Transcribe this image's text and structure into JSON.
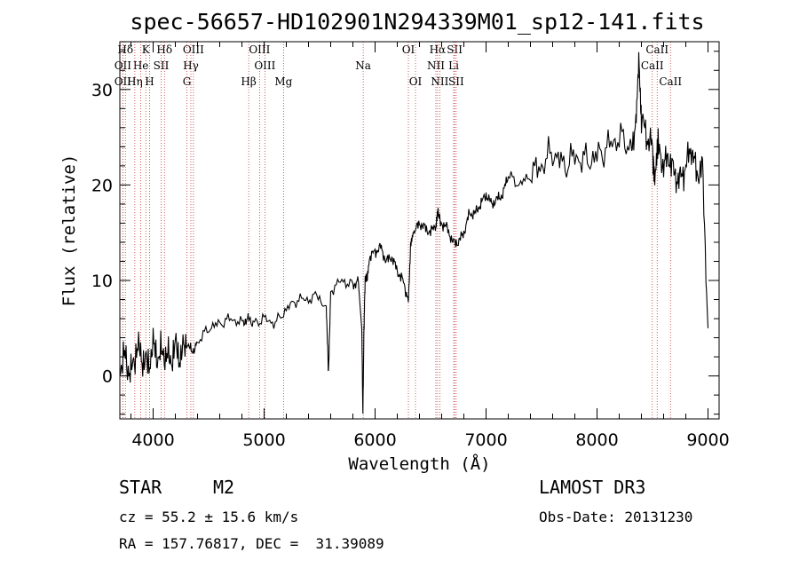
{
  "chart_data": {
    "type": "line",
    "title": "spec-56657-HD102901N294339M01_sp12-141.fits",
    "xlabel": "Wavelength (Å)",
    "ylabel": "Flux (relative)",
    "xlim": [
      3700,
      9100
    ],
    "ylim": [
      -4.5,
      35
    ],
    "xticks": [
      4000,
      5000,
      6000,
      7000,
      8000,
      9000
    ],
    "yticks": [
      0,
      10,
      20,
      30
    ],
    "series": [
      {
        "name": "spectrum",
        "x": [
          3700,
          3750,
          3800,
          3850,
          3900,
          3950,
          4000,
          4050,
          4100,
          4150,
          4200,
          4250,
          4300,
          4350,
          4400,
          4500,
          4600,
          4700,
          4800,
          4850,
          4900,
          5000,
          5100,
          5200,
          5300,
          5400,
          5500,
          5560,
          5580,
          5600,
          5700,
          5800,
          5850,
          5880,
          5890,
          5900,
          5910,
          5930,
          5950,
          6000,
          6050,
          6100,
          6150,
          6200,
          6250,
          6300,
          6320,
          6350,
          6400,
          6450,
          6500,
          6550,
          6563,
          6600,
          6650,
          6700,
          6750,
          6800,
          6850,
          6900,
          6950,
          7000,
          7050,
          7100,
          7150,
          7200,
          7300,
          7400,
          7500,
          7600,
          7700,
          7800,
          7900,
          8000,
          8100,
          8200,
          8300,
          8350,
          8380,
          8400,
          8450,
          8500,
          8520,
          8550,
          8600,
          8650,
          8700,
          8750,
          8800,
          8850,
          8900,
          8950,
          9000
        ],
        "values": [
          1,
          2,
          0,
          3,
          2,
          1,
          3,
          2,
          2.5,
          1.5,
          3,
          2,
          3.5,
          2.5,
          3.5,
          5,
          5.5,
          6,
          5.5,
          6,
          5.5,
          6,
          5.5,
          7,
          8,
          8,
          8.5,
          7,
          0,
          9,
          10,
          9.5,
          10,
          5,
          -4,
          5,
          10,
          10.5,
          12.5,
          13,
          13.5,
          12,
          12.5,
          11,
          10,
          8,
          13.5,
          15,
          16,
          15.5,
          15,
          16,
          17,
          16,
          15.5,
          14,
          14,
          15,
          17,
          17,
          18,
          19,
          18,
          18.5,
          19,
          21,
          20,
          21,
          22,
          23.5,
          22,
          23,
          22.5,
          23,
          24,
          25,
          24,
          26,
          33,
          27,
          25,
          24,
          21,
          24,
          22,
          23,
          21,
          20.5,
          22,
          24,
          21,
          22,
          5
        ]
      }
    ],
    "spectral_lines": [
      {
        "label": "Hδ",
        "wavelength": 3750,
        "row": 0
      },
      {
        "label": "K",
        "wavelength": 3934,
        "row": 0
      },
      {
        "label": "Hδ",
        "wavelength": 4102,
        "row": 0
      },
      {
        "label": "OIII",
        "wavelength": 4363,
        "row": 0
      },
      {
        "label": "OIII",
        "wavelength": 4959,
        "row": 0
      },
      {
        "label": "OI",
        "wavelength": 6300,
        "row": 0
      },
      {
        "label": "Hα",
        "wavelength": 6563,
        "row": 0
      },
      {
        "label": "SII",
        "wavelength": 6717,
        "row": 0
      },
      {
        "label": "CaII",
        "wavelength": 8542,
        "row": 0
      },
      {
        "label": "OII",
        "wavelength": 3727,
        "row": 1
      },
      {
        "label": "He",
        "wavelength": 3889,
        "row": 1
      },
      {
        "label": "SII",
        "wavelength": 4072,
        "row": 1
      },
      {
        "label": "Hγ",
        "wavelength": 4340,
        "row": 1
      },
      {
        "label": "OIII",
        "wavelength": 5007,
        "row": 1
      },
      {
        "label": "Na",
        "wavelength": 5893,
        "row": 1
      },
      {
        "label": "NII",
        "wavelength": 6548,
        "row": 1
      },
      {
        "label": "Li",
        "wavelength": 6708,
        "row": 1
      },
      {
        "label": "CaII",
        "wavelength": 8498,
        "row": 1
      },
      {
        "label": "OII",
        "wavelength": 3727,
        "row": 2
      },
      {
        "label": "Hη",
        "wavelength": 3835,
        "row": 2
      },
      {
        "label": "H",
        "wavelength": 3968,
        "row": 2
      },
      {
        "label": "G",
        "wavelength": 4304,
        "row": 2
      },
      {
        "label": "Hβ",
        "wavelength": 4861,
        "row": 2
      },
      {
        "label": "Mg",
        "wavelength": 5175,
        "row": 2
      },
      {
        "label": "OI",
        "wavelength": 6364,
        "row": 2
      },
      {
        "label": "NII",
        "wavelength": 6583,
        "row": 2
      },
      {
        "label": "SII",
        "wavelength": 6731,
        "row": 2
      },
      {
        "label": "CaII",
        "wavelength": 8662,
        "row": 2
      }
    ]
  },
  "info": {
    "class": "STAR",
    "subclass": "M2",
    "redshift": "cz = 55.2 ± 15.6 km/s",
    "coords": "RA = 157.76817, DEC =  31.39089",
    "survey": "LAMOST DR3",
    "obs_date": "Obs-Date: 20131230"
  }
}
